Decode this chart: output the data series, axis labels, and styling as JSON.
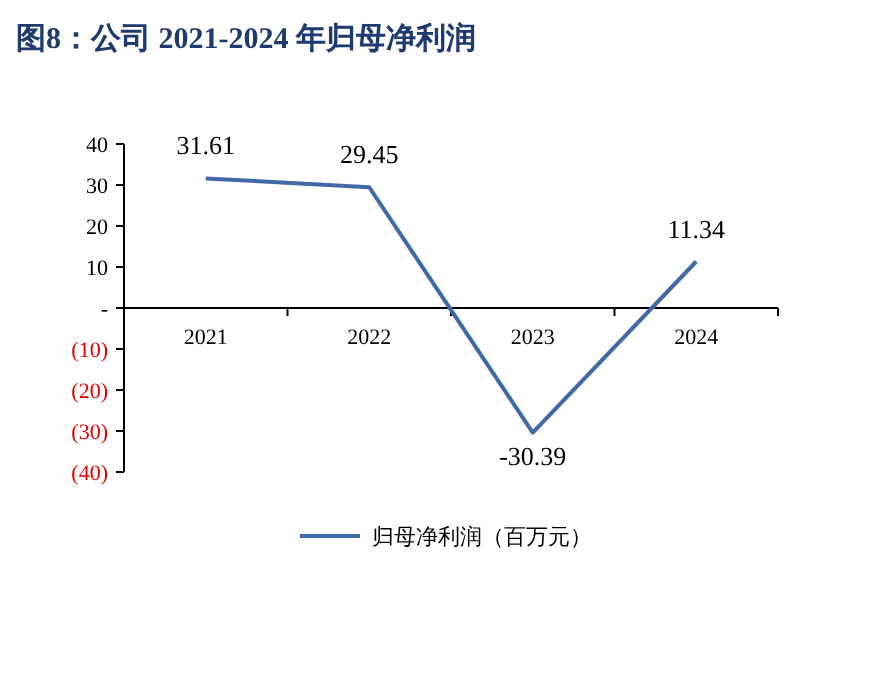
{
  "chart_data": {
    "type": "line",
    "title": "图8：公司 2021-2024 年归母净利润",
    "categories": [
      "2021",
      "2022",
      "2023",
      "2024"
    ],
    "series": [
      {
        "name": "归母净利润（百万元）",
        "color": "#4169a8",
        "values": [
          31.61,
          29.45,
          -30.39,
          11.34
        ]
      }
    ],
    "ylim": [
      -40,
      40
    ],
    "yticks": [
      {
        "value": -40,
        "label": "(40)"
      },
      {
        "value": -30,
        "label": "(30)"
      },
      {
        "value": -20,
        "label": "(20)"
      },
      {
        "value": -10,
        "label": "(10)"
      },
      {
        "value": 0,
        "label": "-"
      },
      10,
      20,
      30,
      40
    ],
    "data_labels": true,
    "legend": "bottom",
    "grid": false,
    "marker": "none",
    "line_style": "solid"
  }
}
